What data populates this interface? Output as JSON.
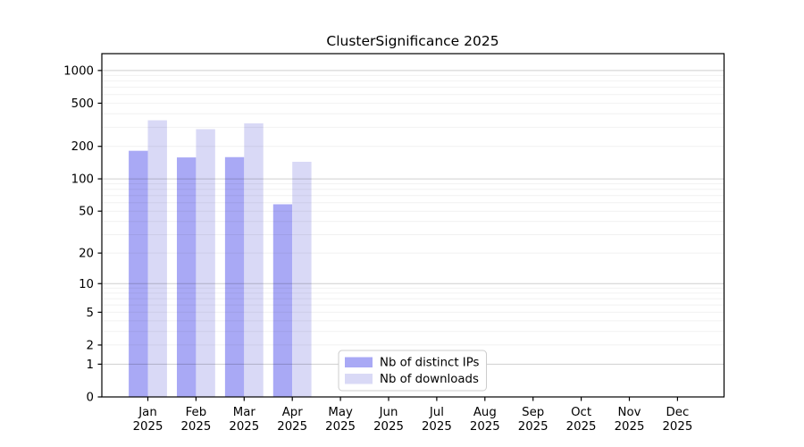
{
  "chart_data": {
    "type": "bar",
    "title": "ClusterSignificance 2025",
    "categories": [
      "Jan 2025",
      "Feb 2025",
      "Mar 2025",
      "Apr 2025",
      "May 2025",
      "Jun 2025",
      "Jul 2025",
      "Aug 2025",
      "Sep 2025",
      "Oct 2025",
      "Nov 2025",
      "Dec 2025"
    ],
    "series": [
      {
        "name": "Nb of distinct IPs",
        "color": "#a9a9f5",
        "values": [
          182,
          158,
          159,
          58,
          null,
          null,
          null,
          null,
          null,
          null,
          null,
          null
        ]
      },
      {
        "name": "Nb of downloads",
        "color": "#d9d9f6",
        "values": [
          348,
          288,
          326,
          144,
          null,
          null,
          null,
          null,
          null,
          null,
          null,
          null
        ]
      }
    ],
    "yscale": "log10(1+x)",
    "ytick_labels": [
      "0",
      "1",
      "2",
      "5",
      "10",
      "20",
      "50",
      "100",
      "200",
      "500",
      "1000"
    ],
    "yticks": [
      0,
      1,
      2,
      5,
      10,
      20,
      50,
      100,
      200,
      500,
      1000
    ],
    "ylim": [
      0,
      1390
    ],
    "grid": true,
    "legend_position": "bottom-left-inside"
  }
}
